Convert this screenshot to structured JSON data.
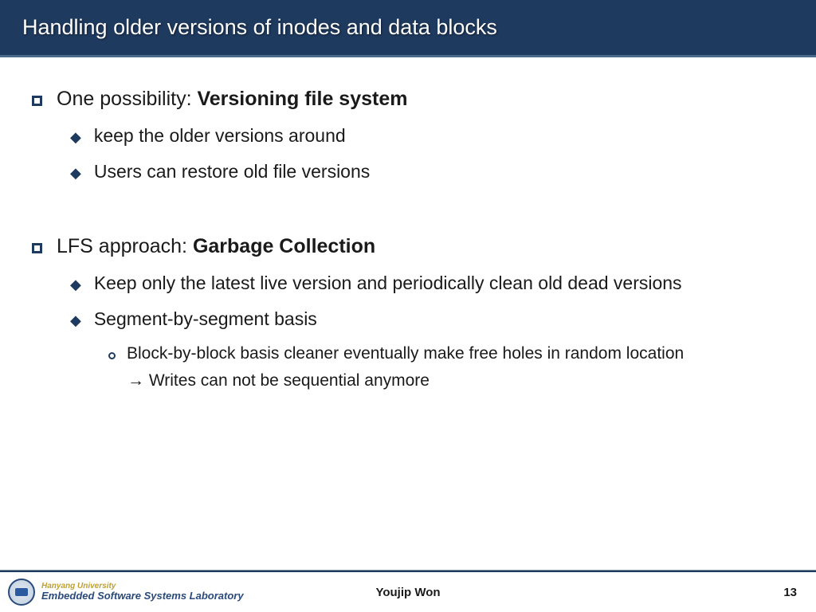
{
  "title": "Handling older versions of inodes and data blocks",
  "bullets": {
    "b1_prefix": "One possibility: ",
    "b1_bold": "Versioning file system",
    "b1_sub1": "keep the older versions around",
    "b1_sub2": "Users can restore old file versions",
    "b2_prefix": "LFS approach: ",
    "b2_bold": "Garbage Collection",
    "b2_sub1": "Keep only the latest live version and periodically clean old dead versions",
    "b2_sub2": "Segment-by-segment basis",
    "b2_sub2_sub1": "Block-by-block basis cleaner eventually make free holes in random location",
    "b2_sub2_cont": "→ Writes can not be sequential anymore"
  },
  "footer": {
    "university": "Hanyang University",
    "lab": "Embedded Software Systems Laboratory",
    "author": "Youjip Won",
    "page": "13"
  },
  "colors": {
    "header_bg": "#1f3a5f",
    "accent": "#1f3a5f"
  }
}
